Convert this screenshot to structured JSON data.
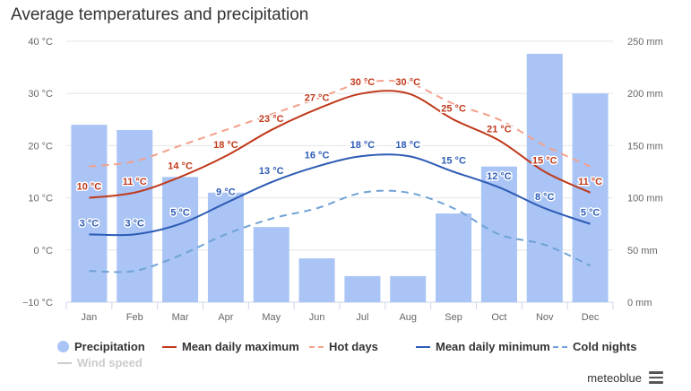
{
  "title": "Average temperatures and precipitation",
  "credit": "meteoblue",
  "menu_icon": "hamburger-menu-icon",
  "chart_data": {
    "type": "bar+line",
    "categories": [
      "Jan",
      "Feb",
      "Mar",
      "Apr",
      "May",
      "Jun",
      "Jul",
      "Aug",
      "Sep",
      "Oct",
      "Nov",
      "Dec"
    ],
    "y_left": {
      "min": -10,
      "max": 40,
      "ticks": [
        -10,
        0,
        10,
        20,
        30,
        40
      ],
      "tick_labels": [
        "−10 °C",
        "0 °C",
        "10 °C",
        "20 °C",
        "30 °C",
        "40 °C"
      ]
    },
    "y_right": {
      "min": 0,
      "max": 250,
      "ticks": [
        0,
        50,
        100,
        150,
        200,
        250
      ],
      "tick_labels": [
        "0 mm",
        "50 mm",
        "100 mm",
        "150 mm",
        "200 mm",
        "250 mm"
      ]
    },
    "grid": true,
    "legend_position": "bottom",
    "precipitation": {
      "name": "Precipitation",
      "color": "#a9c4f5",
      "values": [
        170,
        165,
        120,
        105,
        72,
        42,
        25,
        25,
        85,
        130,
        238,
        200
      ]
    },
    "series": [
      {
        "name": "Mean daily maximum",
        "color": "#c0391b",
        "style": "solid",
        "labeled": true,
        "values": [
          10,
          11,
          14,
          18,
          23,
          27,
          30,
          30,
          25,
          21,
          15,
          11
        ],
        "labels": [
          "10 °C",
          "11 °C",
          "14 °C",
          "18 °C",
          "23 °C",
          "27 °C",
          "30 °C",
          "30 °C",
          "25 °C",
          "21 °C",
          "15 °C",
          "11 °C"
        ]
      },
      {
        "name": "Hot days",
        "color": "#f4a08b",
        "style": "dashed",
        "labeled": false,
        "values": [
          16,
          17,
          20,
          23,
          26,
          29,
          32,
          32,
          28,
          25,
          20,
          16
        ]
      },
      {
        "name": "Mean daily minimum",
        "color": "#2d5bb5",
        "style": "solid",
        "labeled": true,
        "values": [
          3,
          3,
          5,
          9,
          13,
          16,
          18,
          18,
          15,
          12,
          8,
          5
        ],
        "labels": [
          "3 °C",
          "3 °C",
          "5 °C",
          "9 °C",
          "13 °C",
          "16 °C",
          "18 °C",
          "18 °C",
          "15 °C",
          "12 °C",
          "8 °C",
          "5 °C"
        ]
      },
      {
        "name": "Cold nights",
        "color": "#6fa2d6",
        "style": "dashed",
        "labeled": false,
        "values": [
          -4,
          -4,
          -1,
          3,
          6,
          8,
          11,
          11,
          8,
          3,
          1,
          -3
        ]
      }
    ],
    "legend": [
      {
        "name": "Precipitation",
        "symbol": "dot",
        "color": "#a9c4f5"
      },
      {
        "name": "Mean daily maximum",
        "symbol": "line",
        "color": "#c0391b"
      },
      {
        "name": "Hot days",
        "symbol": "dash",
        "color": "#f4a08b"
      },
      {
        "name": "Mean daily minimum",
        "symbol": "line",
        "color": "#2d5bb5"
      },
      {
        "name": "Cold nights",
        "symbol": "dash",
        "color": "#6fa2d6"
      },
      {
        "name": "Wind speed",
        "symbol": "line",
        "color": "#cccccc",
        "hidden": true
      }
    ]
  }
}
